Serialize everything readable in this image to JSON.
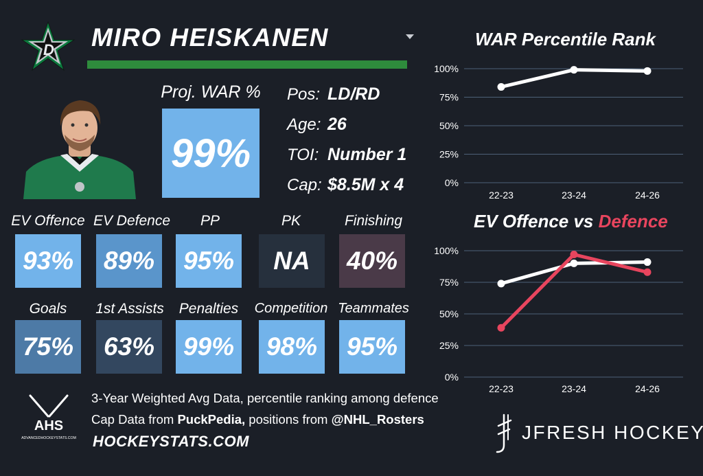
{
  "header": {
    "player_name": "MIRO HEISKANEN",
    "team_logo": "dallas-stars-star-logo",
    "colors": {
      "team_green": "#2e8b3c",
      "tile_light": "#72b3ea",
      "tile_mid": "#5a95cb",
      "tile_dark": "#33475f",
      "tile_na": "#26303d",
      "tile_low": "#4a3a48",
      "background": "#1b1f27"
    }
  },
  "projection": {
    "label": "Proj. WAR %",
    "value": "99%"
  },
  "info": [
    {
      "label": "Pos:",
      "value": "LD/RD"
    },
    {
      "label": "Age:",
      "value": "26"
    },
    {
      "label": "TOI:",
      "value": "Number 1"
    },
    {
      "label": "Cap:",
      "value": "$8.5M x 4"
    }
  ],
  "stats_row1": [
    {
      "label": "EV Offence",
      "value": "93%"
    },
    {
      "label": "EV Defence",
      "value": "89%"
    },
    {
      "label": "PP",
      "value": "95%"
    },
    {
      "label": "PK",
      "value": "NA"
    },
    {
      "label": "Finishing",
      "value": "40%"
    }
  ],
  "stats_row2": [
    {
      "label": "Goals",
      "value": "75%"
    },
    {
      "label": "1st Assists",
      "value": "63%"
    },
    {
      "label": "Penalties",
      "value": "99%"
    },
    {
      "label": "Competition",
      "value": "98%"
    },
    {
      "label": "Teammates",
      "value": "95%"
    }
  ],
  "footer": {
    "ahs_logo_text": "AHS",
    "ahs_logo_subtext": "ADVANCEDHOCKEYSTATS.COM",
    "line1": "3-Year Weighted Avg Data, percentile ranking among defence",
    "line2_prefix": "Cap Data from ",
    "line2_source1": "PuckPedia,",
    "line2_middle": " positions from ",
    "line2_source2": "@NHL_Rosters",
    "site": "HOCKEYSTATS.COM",
    "brand": "JFRESH HOCKEY"
  },
  "chart_data": [
    {
      "type": "line",
      "title": "WAR Percentile Rank",
      "categories": [
        "22-23",
        "23-24",
        "24-26"
      ],
      "ylim": [
        0,
        100
      ],
      "yticks": [
        0,
        25,
        50,
        75,
        100
      ],
      "ytick_labels": [
        "0%",
        "25%",
        "50%",
        "75%",
        "100%"
      ],
      "series": [
        {
          "name": "WAR",
          "color": "#ffffff",
          "values": [
            84,
            99,
            98
          ]
        }
      ]
    },
    {
      "type": "line",
      "title_part1": "EV Offence vs ",
      "title_part2": "Defence",
      "title_part2_color": "#e8455e",
      "categories": [
        "22-23",
        "23-24",
        "24-26"
      ],
      "ylim": [
        0,
        100
      ],
      "yticks": [
        0,
        25,
        50,
        75,
        100
      ],
      "ytick_labels": [
        "0%",
        "25%",
        "50%",
        "75%",
        "100%"
      ],
      "series": [
        {
          "name": "EV Offence",
          "color": "#ffffff",
          "values": [
            74,
            90,
            91
          ]
        },
        {
          "name": "EV Defence",
          "color": "#e8455e",
          "values": [
            39,
            97,
            83
          ]
        }
      ]
    }
  ]
}
